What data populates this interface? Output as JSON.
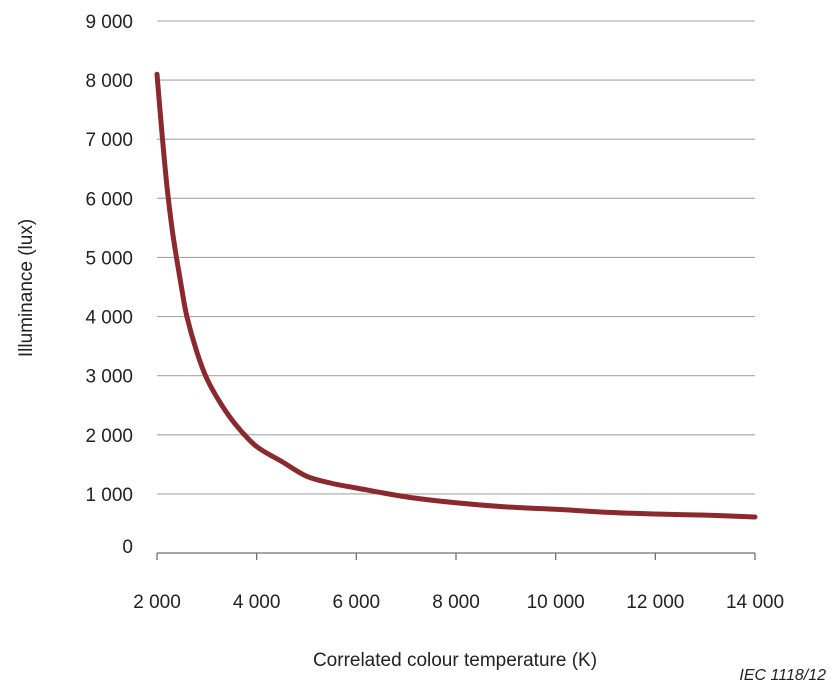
{
  "chart_data": {
    "type": "line",
    "title": "",
    "xlabel": "Correlated colour temperature   (K)",
    "ylabel": "Illuminance   (lux)",
    "xlim": [
      2000,
      14000
    ],
    "ylim": [
      0,
      9000
    ],
    "x_ticks": [
      2000,
      4000,
      6000,
      8000,
      10000,
      12000,
      14000
    ],
    "x_tick_labels": [
      "2 000",
      "4 000",
      "6 000",
      "8 000",
      "10 000",
      "12 000",
      "14 000"
    ],
    "y_ticks": [
      0,
      1000,
      2000,
      3000,
      4000,
      5000,
      6000,
      7000,
      8000,
      9000
    ],
    "y_tick_labels": [
      "0",
      "1 000",
      "2 000",
      "3 000",
      "4 000",
      "5 000",
      "6 000",
      "7 000",
      "8 000",
      "9 000"
    ],
    "grid": "horizontal",
    "legend": "none",
    "series": [
      {
        "color": "#8b2a2e",
        "x": [
          2000,
          2100,
          2200,
          2300,
          2400,
          2500,
          2600,
          2800,
          3000,
          3300,
          3600,
          4000,
          4500,
          5000,
          5500,
          6000,
          7000,
          8000,
          9000,
          10000,
          11000,
          12000,
          13000,
          14000
        ],
        "y": [
          8100,
          7100,
          6200,
          5500,
          4950,
          4450,
          4000,
          3400,
          2950,
          2500,
          2150,
          1800,
          1550,
          1300,
          1180,
          1100,
          950,
          850,
          780,
          740,
          690,
          660,
          640,
          610
        ]
      }
    ],
    "source_note": "IEC   1118/12"
  }
}
